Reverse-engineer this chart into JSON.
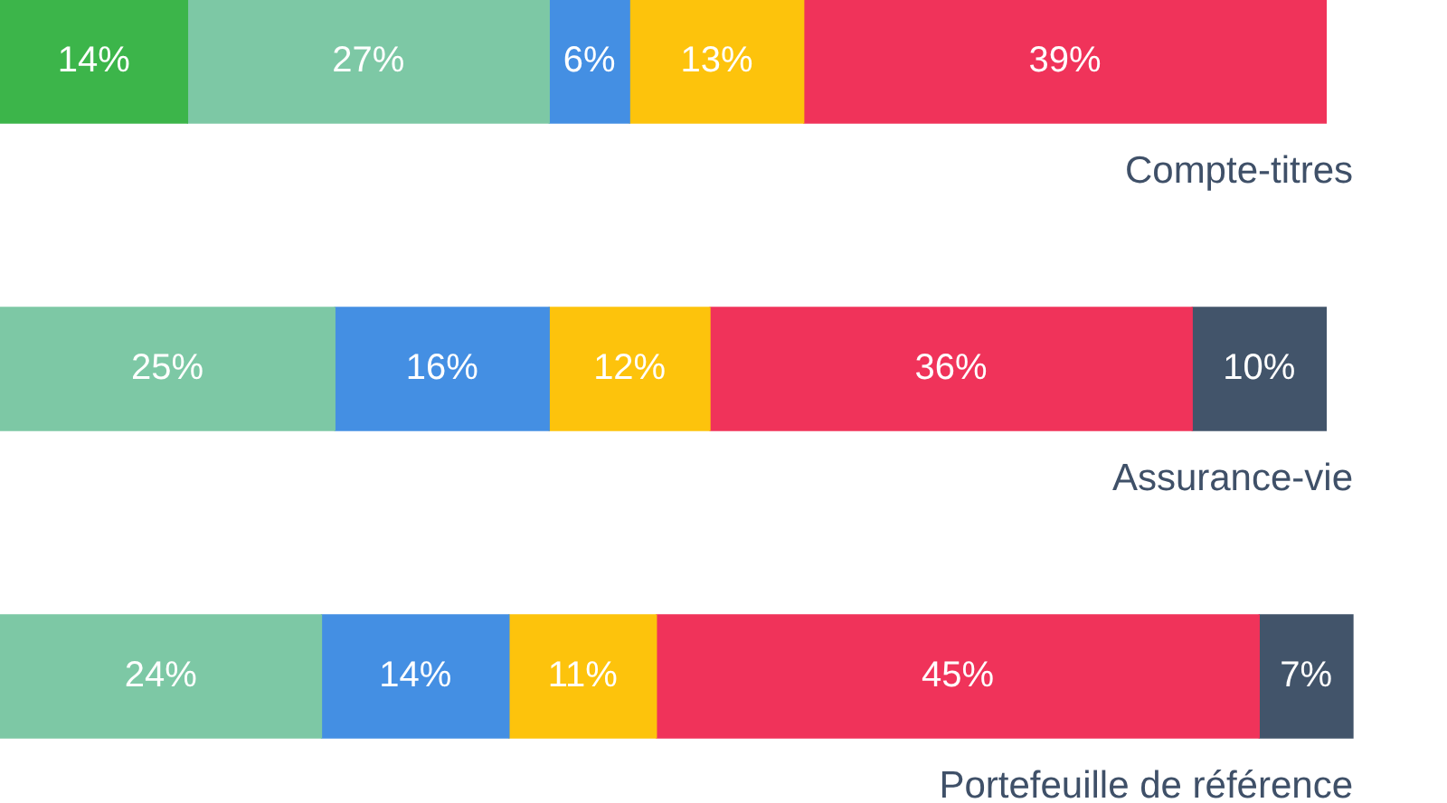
{
  "chart_data": {
    "type": "bar",
    "orientation": "horizontal",
    "stacked": true,
    "categories": [
      "Compte-titres",
      "Assurance-vie",
      "Portefeuille de référence"
    ],
    "series": [
      {
        "color": "#3cb54a",
        "values": [
          14,
          null,
          null
        ],
        "value_labels": [
          "14%",
          null,
          null
        ]
      },
      {
        "color": "#7dc8a5",
        "values": [
          27,
          25,
          24
        ],
        "value_labels": [
          "27%",
          "25%",
          "24%"
        ]
      },
      {
        "color": "#448fe3",
        "values": [
          6,
          16,
          14
        ],
        "value_labels": [
          "6%",
          "16%",
          "14%"
        ]
      },
      {
        "color": "#fdc30c",
        "values": [
          13,
          12,
          11
        ],
        "value_labels": [
          "13%",
          "12%",
          "11%"
        ]
      },
      {
        "color": "#f0335a",
        "values": [
          39,
          36,
          45
        ],
        "value_labels": [
          "39%",
          "36%",
          "45%"
        ]
      },
      {
        "color": "#42546a",
        "values": [
          null,
          10,
          7
        ],
        "value_labels": [
          null,
          "10%",
          "7%"
        ]
      }
    ]
  }
}
